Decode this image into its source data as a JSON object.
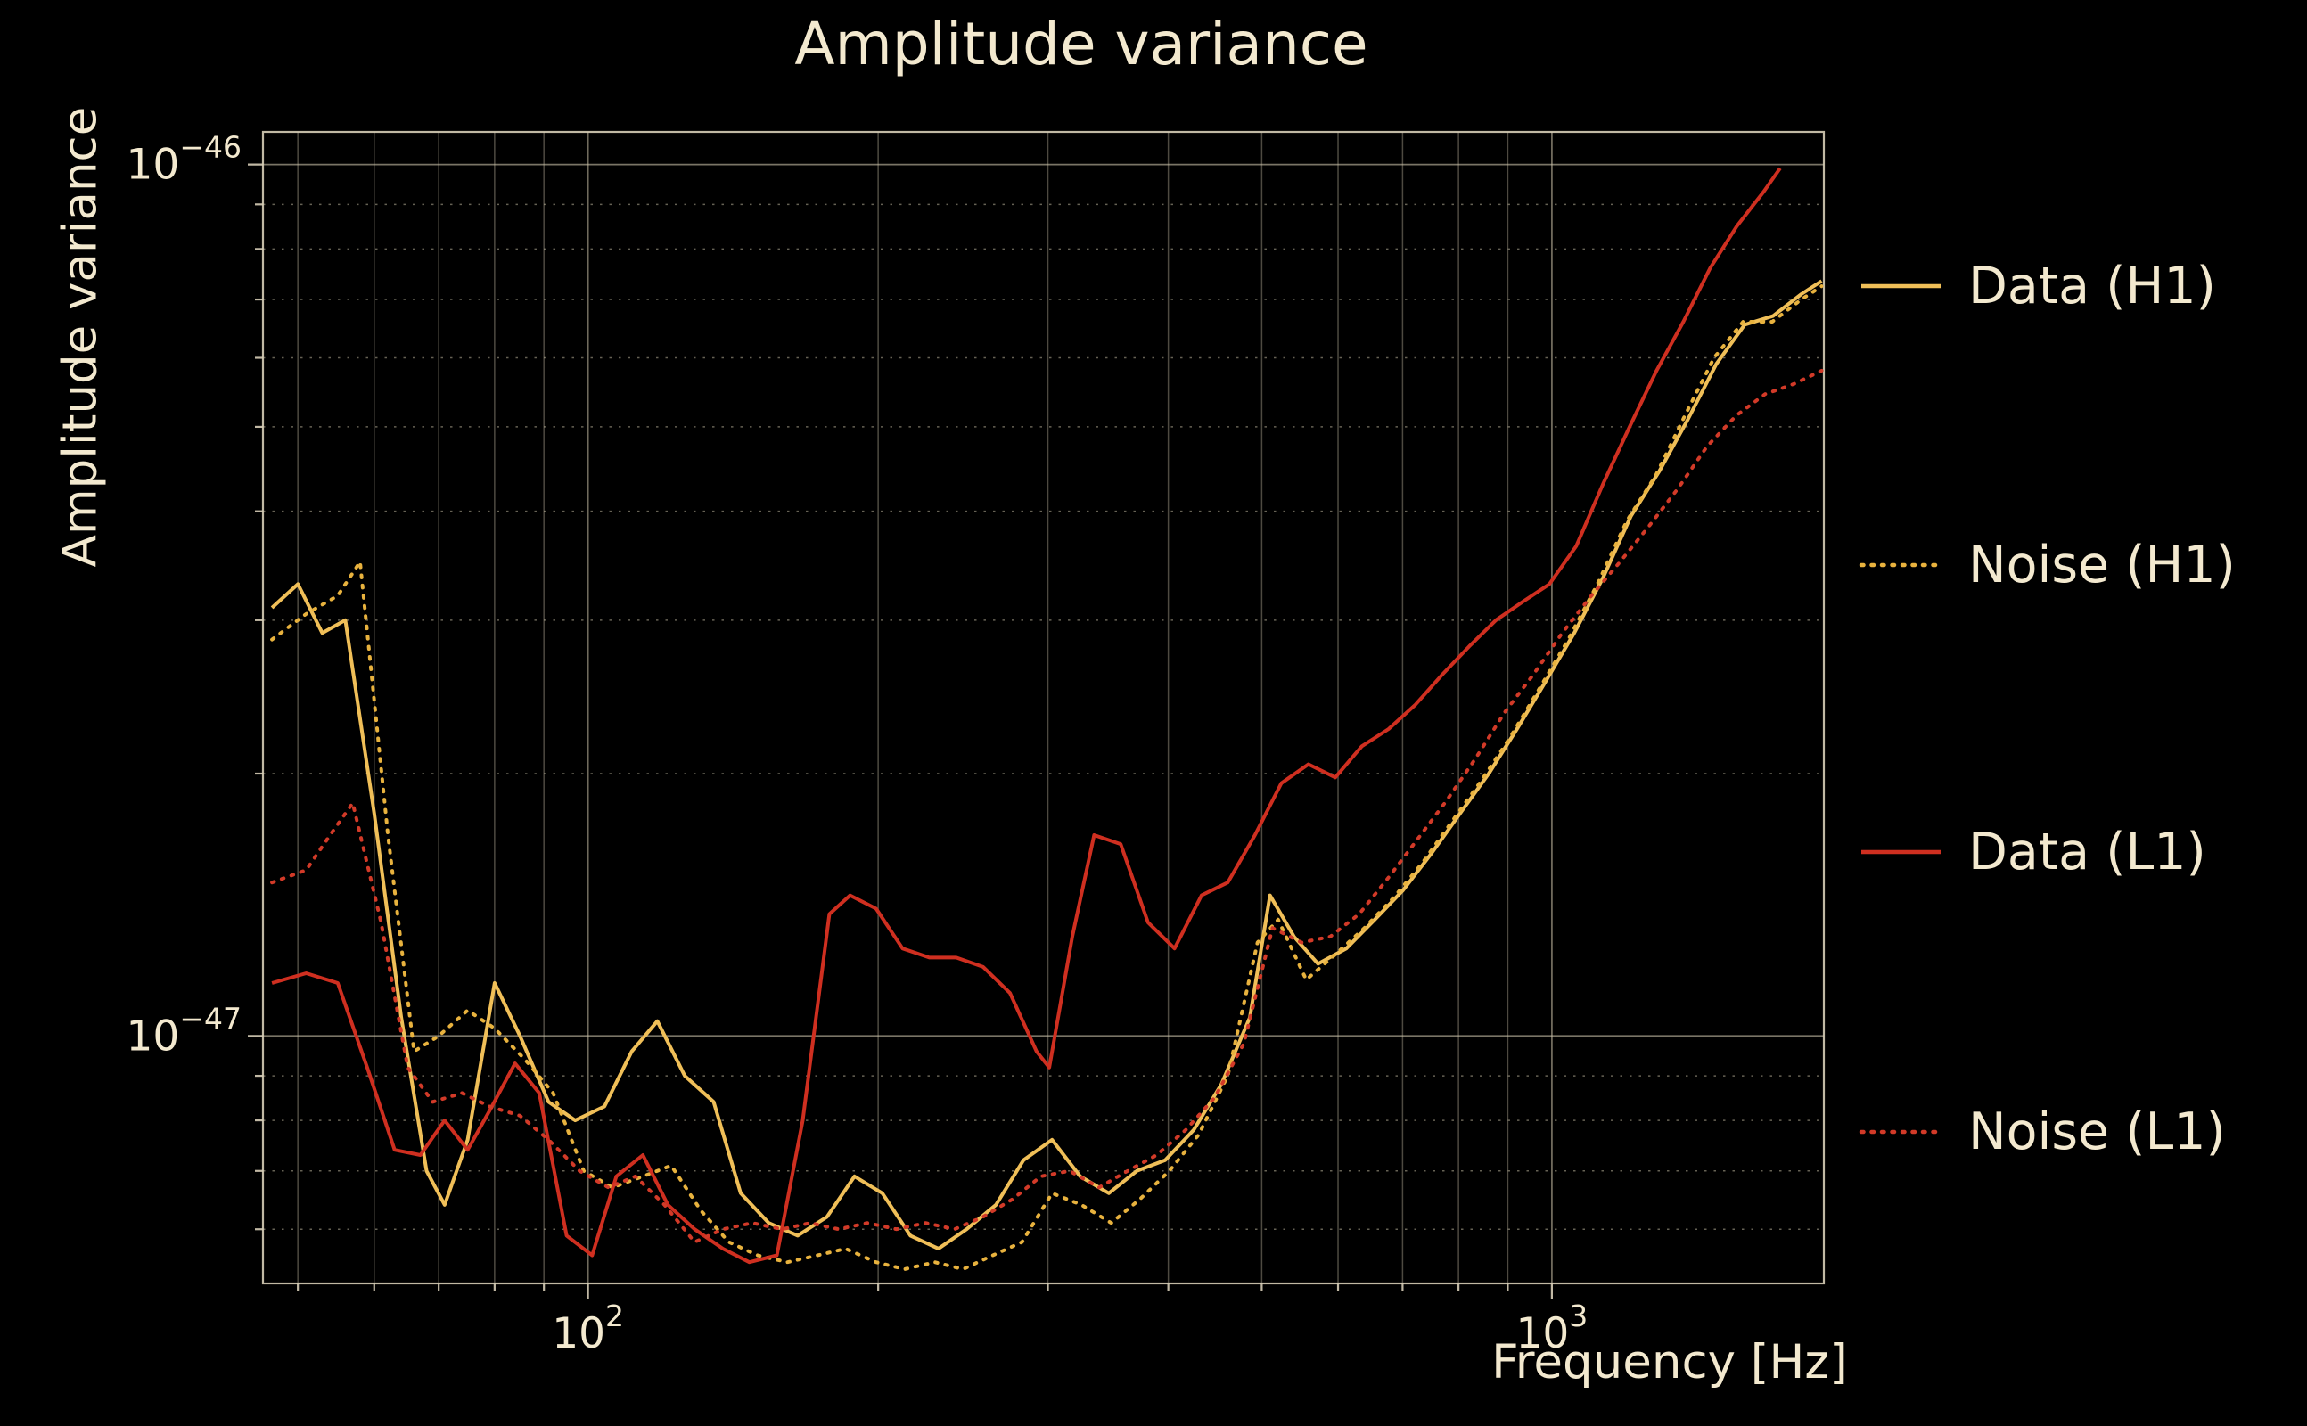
{
  "colors": {
    "background": "#000000",
    "text": "#f3e9cf",
    "grid": "#ccc3aa",
    "frame": "#d6cdb6"
  },
  "chart_data": {
    "type": "line",
    "title": "Amplitude variance",
    "xlabel": "Frequency [Hz]",
    "ylabel": "Amplitude variance",
    "xscale": "log",
    "yscale": "log",
    "xlim": [
      46,
      1915
    ],
    "ylim": [
      5.2e-48,
      1.09e-46
    ],
    "grid": "on",
    "legend_position": "right-outside",
    "x_ticks": [
      {
        "value": 100,
        "exponent": "2"
      },
      {
        "value": 1000,
        "exponent": "3"
      }
    ],
    "x_minor_ticks": [
      50,
      60,
      70,
      80,
      90,
      200,
      300,
      400,
      500,
      600,
      700,
      800,
      900
    ],
    "y_ticks": [
      {
        "value": 1e-47,
        "exponent": "−47"
      },
      {
        "value": 1e-46,
        "exponent": "−46"
      }
    ],
    "y_minor_ticks": [
      6e-48,
      7e-48,
      8e-48,
      9e-48,
      2e-47,
      3e-47,
      4e-47,
      5e-47,
      6e-47,
      7e-47,
      8e-47,
      9e-47
    ],
    "series": [
      {
        "name": "Data (H1)",
        "color": "#f0bf58",
        "style": "solid",
        "points": [
          [
            47,
            3.1e-47
          ],
          [
            50,
            3.3e-47
          ],
          [
            53,
            2.9e-47
          ],
          [
            56,
            3e-47
          ],
          [
            60,
            1.8e-47
          ],
          [
            64,
            1.05e-47
          ],
          [
            68,
            7e-48
          ],
          [
            71,
            6.4e-48
          ],
          [
            75,
            7.6e-48
          ],
          [
            80,
            1.15e-47
          ],
          [
            85,
            1e-47
          ],
          [
            91,
            8.4e-48
          ],
          [
            97,
            8e-48
          ],
          [
            104,
            8.3e-48
          ],
          [
            111,
            9.6e-48
          ],
          [
            118,
            1.04e-47
          ],
          [
            126,
            9e-48
          ],
          [
            135,
            8.4e-48
          ],
          [
            144,
            6.6e-48
          ],
          [
            154,
            6.1e-48
          ],
          [
            165,
            5.9e-48
          ],
          [
            177,
            6.2e-48
          ],
          [
            189,
            6.9e-48
          ],
          [
            202,
            6.6e-48
          ],
          [
            216,
            5.9e-48
          ],
          [
            231,
            5.7e-48
          ],
          [
            247,
            6e-48
          ],
          [
            265,
            6.4e-48
          ],
          [
            283,
            7.2e-48
          ],
          [
            303,
            7.6e-48
          ],
          [
            324,
            6.9e-48
          ],
          [
            347,
            6.6e-48
          ],
          [
            371,
            7e-48
          ],
          [
            397,
            7.2e-48
          ],
          [
            425,
            7.8e-48
          ],
          [
            454,
            8.8e-48
          ],
          [
            486,
            1.05e-47
          ],
          [
            510,
            1.45e-47
          ],
          [
            540,
            1.3e-47
          ],
          [
            572,
            1.21e-47
          ],
          [
            612,
            1.26e-47
          ],
          [
            655,
            1.36e-47
          ],
          [
            701,
            1.47e-47
          ],
          [
            750,
            1.62e-47
          ],
          [
            803,
            1.8e-47
          ],
          [
            860,
            2e-47
          ],
          [
            920,
            2.25e-47
          ],
          [
            985,
            2.55e-47
          ],
          [
            1055,
            2.9e-47
          ],
          [
            1129,
            3.35e-47
          ],
          [
            1208,
            3.95e-47
          ],
          [
            1293,
            4.45e-47
          ],
          [
            1384,
            5.1e-47
          ],
          [
            1481,
            5.9e-47
          ],
          [
            1585,
            6.55e-47
          ],
          [
            1696,
            6.7e-47
          ],
          [
            1815,
            7.1e-47
          ],
          [
            1905,
            7.35e-47
          ]
        ]
      },
      {
        "name": "Noise (H1)",
        "color": "#e8b23e",
        "style": "dotted",
        "points": [
          [
            47,
            2.85e-47
          ],
          [
            51,
            3.05e-47
          ],
          [
            55,
            3.2e-47
          ],
          [
            58,
            3.5e-47
          ],
          [
            62,
            1.7e-47
          ],
          [
            66,
            9.6e-48
          ],
          [
            70,
            1e-47
          ],
          [
            75,
            1.07e-47
          ],
          [
            80,
            1.02e-47
          ],
          [
            86,
            9.4e-48
          ],
          [
            92,
            8.6e-48
          ],
          [
            99,
            7e-48
          ],
          [
            106,
            6.7e-48
          ],
          [
            114,
            6.9e-48
          ],
          [
            122,
            7.1e-48
          ],
          [
            131,
            6.3e-48
          ],
          [
            140,
            5.8e-48
          ],
          [
            150,
            5.6e-48
          ],
          [
            161,
            5.5e-48
          ],
          [
            173,
            5.6e-48
          ],
          [
            185,
            5.7e-48
          ],
          [
            199,
            5.5e-48
          ],
          [
            213,
            5.4e-48
          ],
          [
            229,
            5.5e-48
          ],
          [
            245,
            5.4e-48
          ],
          [
            263,
            5.6e-48
          ],
          [
            282,
            5.8e-48
          ],
          [
            303,
            6.6e-48
          ],
          [
            325,
            6.4e-48
          ],
          [
            349,
            6.1e-48
          ],
          [
            374,
            6.5e-48
          ],
          [
            401,
            7e-48
          ],
          [
            430,
            7.7e-48
          ],
          [
            461,
            9e-48
          ],
          [
            495,
            1.28e-47
          ],
          [
            520,
            1.36e-47
          ],
          [
            556,
            1.16e-47
          ],
          [
            596,
            1.24e-47
          ],
          [
            639,
            1.33e-47
          ],
          [
            685,
            1.44e-47
          ],
          [
            734,
            1.58e-47
          ],
          [
            787,
            1.76e-47
          ],
          [
            844,
            1.96e-47
          ],
          [
            905,
            2.2e-47
          ],
          [
            970,
            2.5e-47
          ],
          [
            1040,
            2.85e-47
          ],
          [
            1115,
            3.3e-47
          ],
          [
            1196,
            3.9e-47
          ],
          [
            1282,
            4.4e-47
          ],
          [
            1374,
            5.15e-47
          ],
          [
            1473,
            6e-47
          ],
          [
            1579,
            6.6e-47
          ],
          [
            1693,
            6.6e-47
          ],
          [
            1815,
            7e-47
          ],
          [
            1905,
            7.25e-47
          ]
        ]
      },
      {
        "name": "Data (L1)",
        "color": "#cf2f20",
        "style": "solid",
        "points": [
          [
            47,
            1.15e-47
          ],
          [
            51,
            1.18e-47
          ],
          [
            55,
            1.15e-47
          ],
          [
            59,
            9.2e-48
          ],
          [
            63,
            7.4e-48
          ],
          [
            67,
            7.3e-48
          ],
          [
            71,
            8e-48
          ],
          [
            75,
            7.4e-48
          ],
          [
            79,
            8.2e-48
          ],
          [
            84,
            9.3e-48
          ],
          [
            89,
            8.6e-48
          ],
          [
            95,
            5.9e-48
          ],
          [
            101,
            5.6e-48
          ],
          [
            107,
            6.9e-48
          ],
          [
            114,
            7.3e-48
          ],
          [
            121,
            6.4e-48
          ],
          [
            129,
            6e-48
          ],
          [
            138,
            5.7e-48
          ],
          [
            147,
            5.5e-48
          ],
          [
            157,
            5.6e-48
          ],
          [
            167,
            8e-48
          ],
          [
            178,
            1.38e-47
          ],
          [
            187,
            1.45e-47
          ],
          [
            199,
            1.4e-47
          ],
          [
            212,
            1.26e-47
          ],
          [
            226,
            1.23e-47
          ],
          [
            241,
            1.23e-47
          ],
          [
            257,
            1.2e-47
          ],
          [
            274,
            1.12e-47
          ],
          [
            292,
            9.6e-48
          ],
          [
            301,
            9.2e-48
          ],
          [
            318,
            1.3e-47
          ],
          [
            335,
            1.7e-47
          ],
          [
            357,
            1.66e-47
          ],
          [
            381,
            1.35e-47
          ],
          [
            406,
            1.26e-47
          ],
          [
            433,
            1.45e-47
          ],
          [
            461,
            1.5e-47
          ],
          [
            492,
            1.7e-47
          ],
          [
            524,
            1.95e-47
          ],
          [
            559,
            2.05e-47
          ],
          [
            596,
            1.98e-47
          ],
          [
            635,
            2.15e-47
          ],
          [
            677,
            2.25e-47
          ],
          [
            722,
            2.4e-47
          ],
          [
            770,
            2.6e-47
          ],
          [
            821,
            2.8e-47
          ],
          [
            875,
            3e-47
          ],
          [
            933,
            3.15e-47
          ],
          [
            994,
            3.3e-47
          ],
          [
            1060,
            3.65e-47
          ],
          [
            1130,
            4.3e-47
          ],
          [
            1204,
            5e-47
          ],
          [
            1284,
            5.8e-47
          ],
          [
            1369,
            6.6e-47
          ],
          [
            1459,
            7.6e-47
          ],
          [
            1556,
            8.5e-47
          ],
          [
            1658,
            9.3e-47
          ],
          [
            1725,
            9.9e-47
          ]
        ]
      },
      {
        "name": "Noise (L1)",
        "color": "#d23a28",
        "style": "dotted",
        "points": [
          [
            47,
            1.5e-47
          ],
          [
            51,
            1.55e-47
          ],
          [
            54,
            1.7e-47
          ],
          [
            57,
            1.85e-47
          ],
          [
            61,
            1.35e-47
          ],
          [
            65,
            9.2e-48
          ],
          [
            69,
            8.4e-48
          ],
          [
            74,
            8.6e-48
          ],
          [
            79,
            8.3e-48
          ],
          [
            85,
            8.1e-48
          ],
          [
            91,
            7.6e-48
          ],
          [
            98,
            7e-48
          ],
          [
            105,
            6.7e-48
          ],
          [
            112,
            6.9e-48
          ],
          [
            120,
            6.4e-48
          ],
          [
            129,
            5.8e-48
          ],
          [
            138,
            6e-48
          ],
          [
            148,
            6.1e-48
          ],
          [
            159,
            6e-48
          ],
          [
            170,
            6.1e-48
          ],
          [
            182,
            6e-48
          ],
          [
            195,
            6.1e-48
          ],
          [
            209,
            6e-48
          ],
          [
            224,
            6.1e-48
          ],
          [
            240,
            6e-48
          ],
          [
            257,
            6.2e-48
          ],
          [
            276,
            6.5e-48
          ],
          [
            295,
            6.9e-48
          ],
          [
            316,
            7e-48
          ],
          [
            339,
            6.7e-48
          ],
          [
            363,
            7e-48
          ],
          [
            389,
            7.3e-48
          ],
          [
            417,
            7.8e-48
          ],
          [
            447,
            8.5e-48
          ],
          [
            479,
            9.8e-48
          ],
          [
            513,
            1.33e-47
          ],
          [
            550,
            1.28e-47
          ],
          [
            589,
            1.3e-47
          ],
          [
            631,
            1.38e-47
          ],
          [
            677,
            1.52e-47
          ],
          [
            725,
            1.68e-47
          ],
          [
            777,
            1.86e-47
          ],
          [
            833,
            2.08e-47
          ],
          [
            893,
            2.35e-47
          ],
          [
            957,
            2.6e-47
          ],
          [
            1025,
            2.9e-47
          ],
          [
            1099,
            3.2e-47
          ],
          [
            1177,
            3.5e-47
          ],
          [
            1262,
            3.85e-47
          ],
          [
            1352,
            4.25e-47
          ],
          [
            1449,
            4.75e-47
          ],
          [
            1553,
            5.15e-47
          ],
          [
            1664,
            5.45e-47
          ],
          [
            1783,
            5.6e-47
          ],
          [
            1905,
            5.8e-47
          ]
        ]
      }
    ]
  }
}
